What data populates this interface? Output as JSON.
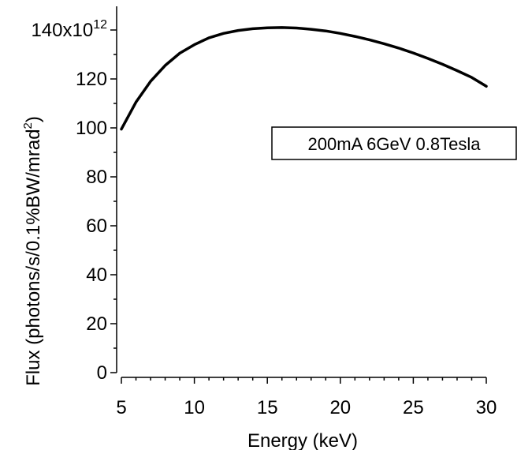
{
  "chart_data": {
    "type": "line",
    "xlabel": "Energy (keV)",
    "ylabel_main": "Flux (photons/s/0.1%BW/mrad",
    "ylabel_sup": "2",
    "ylabel_close": ")",
    "xlim": [
      5,
      30
    ],
    "ylim": [
      0,
      140
    ],
    "x_ticks": [
      5,
      10,
      15,
      20,
      25,
      30
    ],
    "y_ticks": [
      0,
      20,
      40,
      60,
      80,
      100,
      120
    ],
    "y_top_tick": {
      "value": 140,
      "mantissa": "140x10",
      "exponent": "12"
    },
    "grid": false,
    "annotation": "200mA 6GeV 0.8Tesla",
    "series": [
      {
        "color": "#000000",
        "x": [
          5,
          6,
          7,
          8,
          9,
          10,
          11,
          12,
          13,
          14,
          15,
          16,
          17,
          18,
          19,
          20,
          21,
          22,
          23,
          24,
          25,
          26,
          27,
          28,
          29,
          30
        ],
        "y": [
          99.5,
          110.5,
          119.0,
          125.5,
          130.5,
          134.0,
          136.8,
          138.6,
          139.8,
          140.5,
          140.9,
          141.0,
          140.8,
          140.3,
          139.6,
          138.6,
          137.4,
          136.0,
          134.4,
          132.6,
          130.6,
          128.4,
          126.0,
          123.4,
          120.6,
          117.0
        ]
      }
    ]
  }
}
